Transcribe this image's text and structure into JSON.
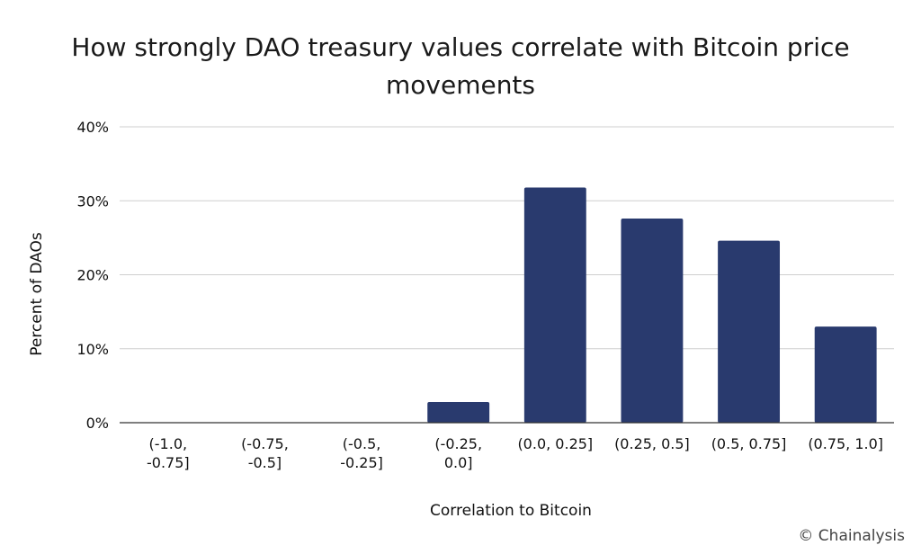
{
  "chart_data": {
    "type": "bar",
    "title_lines": [
      "How strongly DAO treasury values correlate with Bitcoin price",
      "movements"
    ],
    "xlabel": "Correlation to Bitcoin",
    "ylabel": "Percent of DAOs",
    "ylim": [
      0,
      40
    ],
    "yticks": [
      0,
      10,
      20,
      30,
      40
    ],
    "ytick_labels": [
      "0%",
      "10%",
      "20%",
      "30%",
      "40%"
    ],
    "grid": true,
    "bar_color": "#293a6e",
    "categories": [
      [
        "(-1.0,",
        "-0.75]"
      ],
      [
        "(-0.75,",
        "-0.5]"
      ],
      [
        "(-0.5,",
        "-0.25]"
      ],
      [
        "(-0.25,",
        "0.0]"
      ],
      [
        "(0.0, 0.25]"
      ],
      [
        "(0.25, 0.5]"
      ],
      [
        "(0.5, 0.75]"
      ],
      [
        "(0.75, 1.0]"
      ]
    ],
    "values": [
      0,
      0,
      0,
      2.8,
      31.8,
      27.6,
      24.6,
      13.0
    ]
  },
  "credit": "© Chainalysis"
}
